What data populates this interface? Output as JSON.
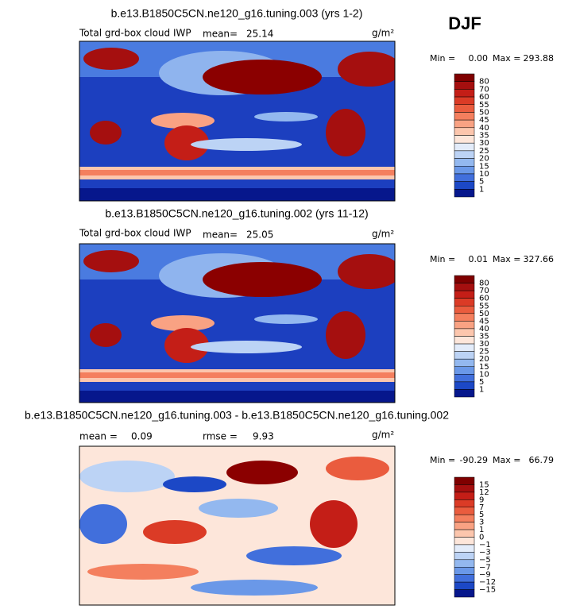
{
  "season": "DJF",
  "units": "g/m²",
  "panels": [
    {
      "title": "b.e13.B1850C5CN.ne120_g16.tuning.003 (yrs 1-2)",
      "field": "Total grd-box cloud IWP",
      "mean_label": "mean=",
      "mean": "25.14",
      "min_label": "Min =",
      "min": "0.00",
      "max_label": "Max =",
      "max": "293.88",
      "colorbar_labels": [
        "80",
        "70",
        "60",
        "55",
        "50",
        "45",
        "40",
        "35",
        "30",
        "25",
        "20",
        "15",
        "10",
        "5",
        "1"
      ]
    },
    {
      "title": "b.e13.B1850C5CN.ne120_g16.tuning.002 (yrs 11-12)",
      "field": "Total grd-box cloud IWP",
      "mean_label": "mean=",
      "mean": "25.05",
      "min_label": "Min =",
      "min": "0.01",
      "max_label": "Max =",
      "max": "327.66",
      "colorbar_labels": [
        "80",
        "70",
        "60",
        "55",
        "50",
        "45",
        "40",
        "35",
        "30",
        "25",
        "20",
        "15",
        "10",
        "5",
        "1"
      ]
    },
    {
      "title": "b.e13.B1850C5CN.ne120_g16.tuning.003 - b.e13.B1850C5CN.ne120_g16.tuning.002",
      "mean_label": "mean =",
      "mean": "0.09",
      "rmse_label": "rmse =",
      "rmse": "9.93",
      "min_label": "Min =",
      "min": "-90.29",
      "max_label": "Max =",
      "max": "66.79",
      "colorbar_labels": [
        "15",
        "12",
        "9",
        "7",
        "5",
        "3",
        "1",
        "0",
        "−1",
        "−3",
        "−5",
        "−7",
        "−9",
        "−12",
        "−15"
      ]
    }
  ],
  "colorbar_colors": [
    "#7f0000",
    "#a50f0f",
    "#c41e17",
    "#db3b26",
    "#ea5c3e",
    "#f47f5e",
    "#f9a283",
    "#fcc6ad",
    "#fde6da",
    "#e3ecfa",
    "#bcd3f5",
    "#93b8ef",
    "#6a98e8",
    "#416fdc",
    "#1c48c6",
    "#06178c"
  ]
}
